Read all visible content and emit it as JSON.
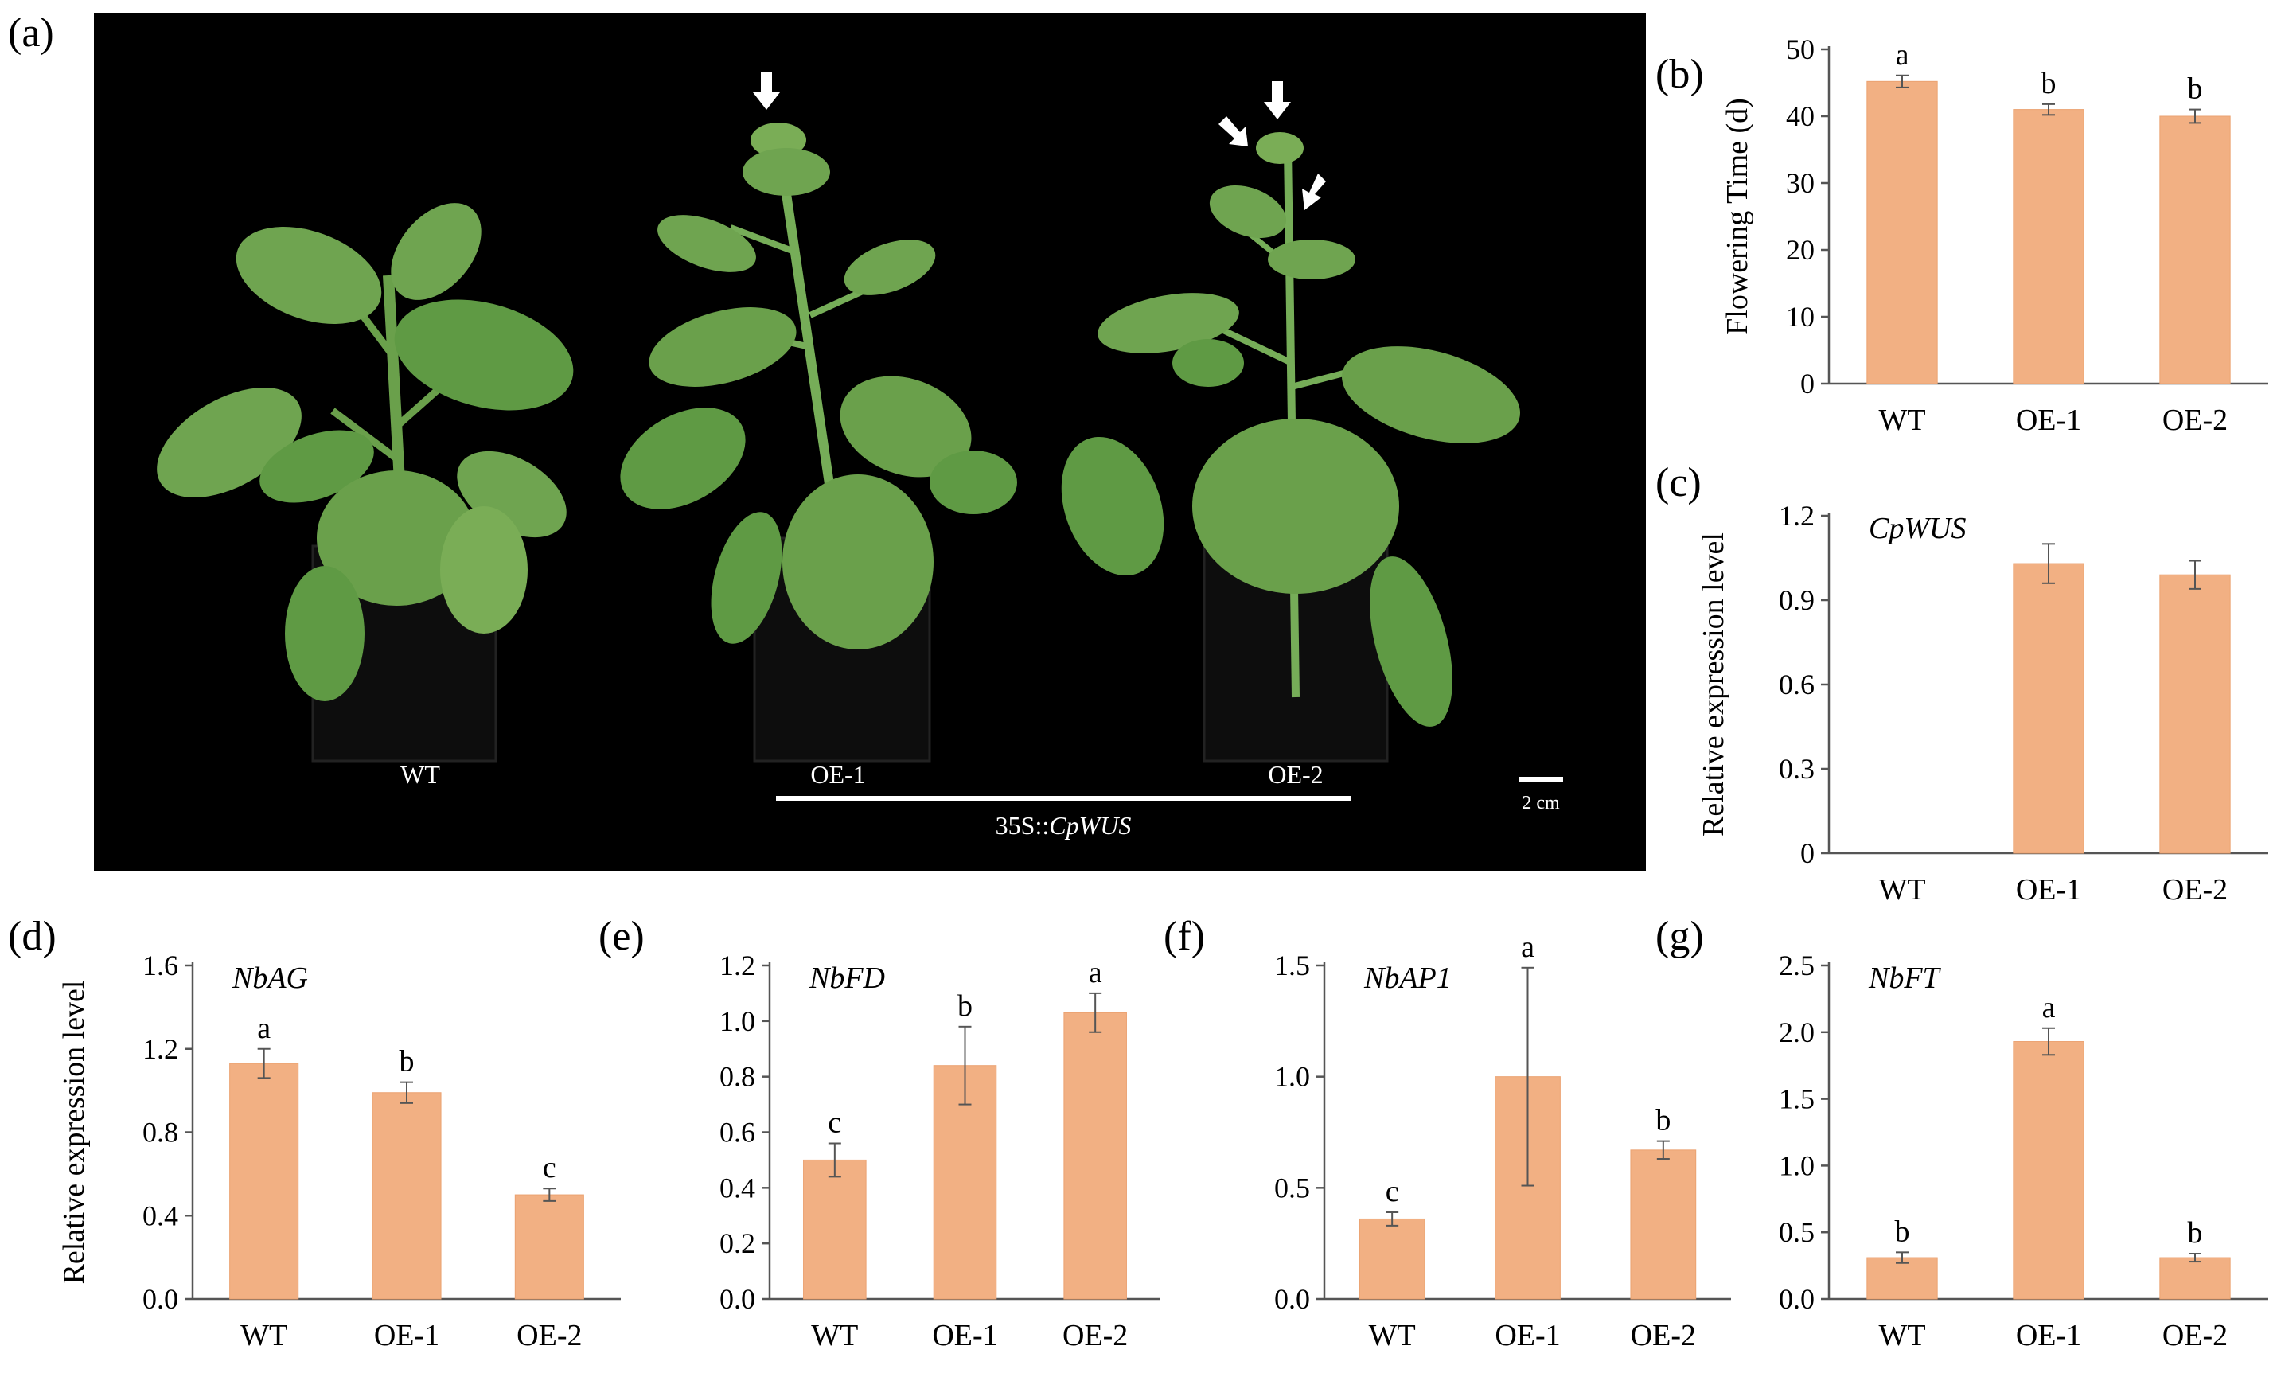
{
  "figure": {
    "panels": [
      "(a)",
      "(b)",
      "(c)",
      "(d)",
      "(e)",
      "(f)",
      "(g)"
    ]
  },
  "photo": {
    "labels": [
      "WT",
      "OE-1",
      "OE-2"
    ],
    "construct_prefix": "35S::",
    "construct_gene": "CpWUS",
    "scale_bar": "2 cm"
  },
  "colors": {
    "bar": "#F2B083",
    "bar_edge": "#EBA271",
    "photo_bg": "#000000",
    "plant_leaf": "#6fa450",
    "plant_dark": "#4d7d33"
  },
  "chart_data": [
    {
      "panel": "(b)",
      "type": "bar",
      "categories": [
        "WT",
        "OE-1",
        "OE-2"
      ],
      "values": [
        45.2,
        41.0,
        40.0
      ],
      "errors": [
        0.9,
        0.8,
        1.0
      ],
      "letters": [
        "a",
        "b",
        "b"
      ],
      "title": "",
      "gene": "",
      "ylabel": "Flowering Time (d)",
      "ylim": [
        0,
        50
      ],
      "yticks": [
        "0",
        "10",
        "20",
        "30",
        "40",
        "50"
      ],
      "grid": false
    },
    {
      "panel": "(c)",
      "type": "bar",
      "categories": [
        "WT",
        "OE-1",
        "OE-2"
      ],
      "values": [
        0,
        1.03,
        0.99
      ],
      "errors": [
        0,
        0.07,
        0.05
      ],
      "letters": [
        "",
        "",
        ""
      ],
      "title": "",
      "gene": "CpWUS",
      "ylabel": "Relative expression level",
      "ylim": [
        0,
        1.2
      ],
      "yticks": [
        "0",
        "0.3",
        "0.6",
        "0.9",
        "1.2"
      ],
      "grid": false
    },
    {
      "panel": "(d)",
      "type": "bar",
      "categories": [
        "WT",
        "OE-1",
        "OE-2"
      ],
      "values": [
        1.13,
        0.99,
        0.5
      ],
      "errors": [
        0.07,
        0.05,
        0.03
      ],
      "letters": [
        "a",
        "b",
        "c"
      ],
      "title": "",
      "gene": "NbAG",
      "ylabel": "Relative expression level",
      "ylim": [
        0,
        1.6
      ],
      "yticks": [
        "0.0",
        "0.4",
        "0.8",
        "1.2",
        "1.6"
      ],
      "grid": false
    },
    {
      "panel": "(e)",
      "type": "bar",
      "categories": [
        "WT",
        "OE-1",
        "OE-2"
      ],
      "values": [
        0.5,
        0.84,
        1.03
      ],
      "errors": [
        0.06,
        0.14,
        0.07
      ],
      "letters": [
        "c",
        "b",
        "a"
      ],
      "title": "",
      "gene": "NbFD",
      "ylabel": "",
      "ylim": [
        0,
        1.2
      ],
      "yticks": [
        "0.0",
        "0.2",
        "0.4",
        "0.6",
        "0.8",
        "1.0",
        "1.2"
      ],
      "grid": false
    },
    {
      "panel": "(f)",
      "type": "bar",
      "categories": [
        "WT",
        "OE-1",
        "OE-2"
      ],
      "values": [
        0.36,
        1.0,
        0.67
      ],
      "errors": [
        0.03,
        0.49,
        0.04
      ],
      "letters": [
        "c",
        "a",
        "b"
      ],
      "title": "",
      "gene": "NbAP1",
      "ylabel": "",
      "ylim": [
        0,
        1.5
      ],
      "yticks": [
        "0.0",
        "0.5",
        "1.0",
        "1.5"
      ],
      "grid": false
    },
    {
      "panel": "(g)",
      "type": "bar",
      "categories": [
        "WT",
        "OE-1",
        "OE-2"
      ],
      "values": [
        0.31,
        1.93,
        0.31
      ],
      "errors": [
        0.04,
        0.1,
        0.03
      ],
      "letters": [
        "b",
        "a",
        "b"
      ],
      "title": "",
      "gene": "NbFT",
      "ylabel": "",
      "ylim": [
        0,
        2.5
      ],
      "yticks": [
        "0.0",
        "0.5",
        "1.0",
        "1.5",
        "2.0",
        "2.5"
      ],
      "grid": false
    }
  ]
}
